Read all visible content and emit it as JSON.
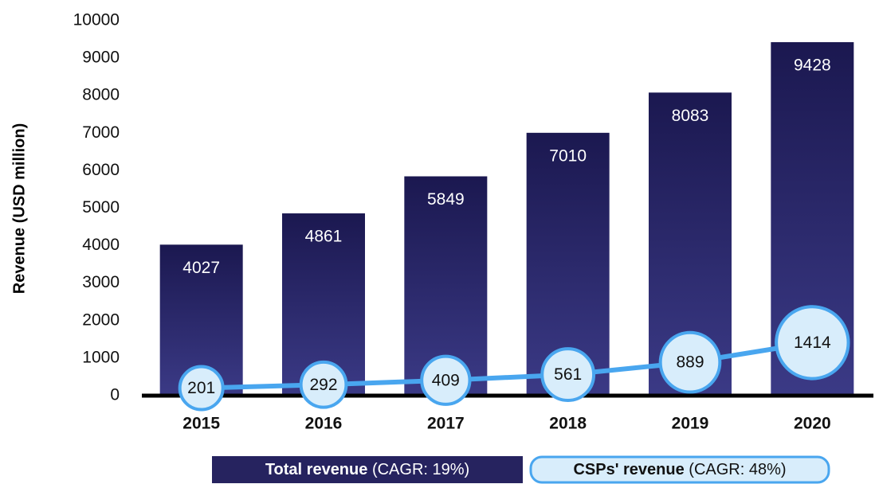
{
  "chart_data": {
    "type": "bar_line",
    "y_label": "Revenue (USD million)",
    "categories": [
      "2015",
      "2016",
      "2017",
      "2018",
      "2019",
      "2020"
    ],
    "series": [
      {
        "name": "Total revenue",
        "note": "(CAGR: 19%)",
        "type": "bar",
        "color": "#26235f",
        "values": [
          4027,
          4861,
          5849,
          7010,
          8083,
          9428
        ]
      },
      {
        "name": "CSPs' revenue",
        "note": "(CAGR: 48%)",
        "type": "line",
        "color": "#49a6ef",
        "values": [
          201,
          292,
          409,
          561,
          889,
          1414
        ]
      }
    ],
    "ylim": [
      0,
      10000
    ],
    "yticks": [
      0,
      1000,
      2000,
      3000,
      4000,
      5000,
      6000,
      7000,
      8000,
      9000,
      10000
    ]
  }
}
